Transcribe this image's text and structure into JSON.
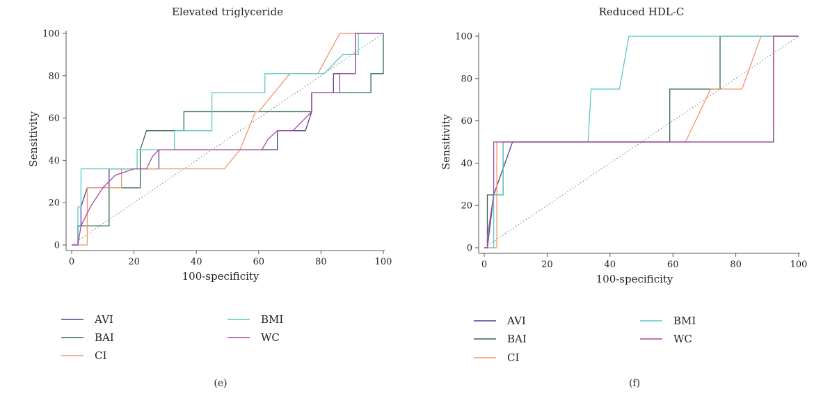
{
  "colors": {
    "AVI": "#4a3f8f",
    "BAI": "#2e6b4a",
    "CI": "#f0956a",
    "BMI": "#5cc8c2",
    "WC": "#a64aa0"
  },
  "chart_data": [
    {
      "type": "line",
      "title": "Elevated triglyceride",
      "panel_label": "(e)",
      "xlabel": "100-specificity",
      "ylabel": "Sensitivity",
      "xlim": [
        0,
        100
      ],
      "ylim": [
        0,
        100
      ],
      "xticks": [
        0,
        20,
        40,
        60,
        80,
        100
      ],
      "yticks": [
        0,
        20,
        40,
        60,
        80,
        100
      ],
      "reference_line": "diagonal",
      "legend": "bottom",
      "legend_order": [
        "AVI",
        "BAI",
        "CI",
        "BMI",
        "WC"
      ],
      "series": [
        {
          "name": "AVI",
          "x": [
            0,
            2,
            2,
            3,
            3,
            5,
            12,
            12,
            28,
            28,
            66,
            66,
            75,
            77,
            77,
            84,
            84,
            91,
            91,
            100
          ],
          "y": [
            0,
            0,
            9,
            9,
            18,
            27,
            27,
            36,
            36,
            45,
            45,
            54,
            54,
            63,
            72,
            72,
            81,
            81,
            100,
            100
          ]
        },
        {
          "name": "BAI",
          "x": [
            0,
            2,
            2,
            5,
            5,
            12,
            12,
            22,
            22,
            24,
            36,
            36,
            77,
            77,
            96,
            96,
            100,
            100
          ],
          "y": [
            0,
            0,
            9,
            9,
            9,
            9,
            27,
            27,
            45,
            54,
            54,
            63,
            63,
            72,
            72,
            81,
            81,
            100
          ]
        },
        {
          "name": "CI",
          "x": [
            0,
            5,
            5,
            16,
            16,
            49,
            54,
            59,
            60,
            70,
            79,
            86,
            92,
            100
          ],
          "y": [
            0,
            0,
            27,
            27,
            36,
            36,
            45,
            63,
            63,
            81,
            81,
            100,
            100,
            100
          ]
        },
        {
          "name": "BMI",
          "x": [
            0,
            2,
            2,
            3,
            3,
            21,
            21,
            33,
            33,
            45,
            45,
            62,
            62,
            81,
            87,
            92,
            92,
            100
          ],
          "y": [
            0,
            0,
            18,
            18,
            36,
            36,
            45,
            45,
            54,
            54,
            72,
            72,
            81,
            81,
            90,
            90,
            100,
            100
          ]
        },
        {
          "name": "WC",
          "x": [
            0,
            2,
            3,
            5,
            6,
            10,
            14,
            20,
            24,
            26,
            28,
            61,
            63,
            66,
            71,
            77,
            77,
            86,
            86,
            91,
            91,
            100
          ],
          "y": [
            0,
            0,
            9,
            15,
            18,
            27,
            33,
            36,
            36,
            42,
            45,
            45,
            50,
            54,
            54,
            63,
            72,
            72,
            81,
            81,
            100,
            100
          ]
        }
      ]
    },
    {
      "type": "line",
      "title": "Reduced HDL-C",
      "panel_label": "(f)",
      "xlabel": "100-specificity",
      "ylabel": "Sensitivity",
      "xlim": [
        0,
        100
      ],
      "ylim": [
        0,
        100
      ],
      "xticks": [
        0,
        20,
        40,
        60,
        80,
        100
      ],
      "yticks": [
        0,
        20,
        40,
        60,
        80,
        100
      ],
      "reference_line": "diagonal",
      "legend": "bottom",
      "legend_order": [
        "AVI",
        "BAI",
        "CI",
        "BMI",
        "WC"
      ],
      "series": [
        {
          "name": "AVI",
          "x": [
            0,
            1,
            2,
            3,
            9,
            92,
            92,
            100
          ],
          "y": [
            0,
            0,
            12,
            25,
            50,
            50,
            100,
            100
          ]
        },
        {
          "name": "BAI",
          "x": [
            0,
            1,
            1,
            6,
            6,
            59,
            59,
            75,
            75,
            100
          ],
          "y": [
            0,
            0,
            25,
            25,
            50,
            50,
            75,
            75,
            100,
            100
          ]
        },
        {
          "name": "CI",
          "x": [
            0,
            4,
            4,
            64,
            72,
            82,
            88,
            100
          ],
          "y": [
            0,
            0,
            50,
            50,
            75,
            75,
            100,
            100
          ]
        },
        {
          "name": "BMI",
          "x": [
            0,
            3,
            3,
            6,
            6,
            33,
            34,
            43,
            46,
            100
          ],
          "y": [
            0,
            0,
            25,
            25,
            50,
            50,
            75,
            75,
            100,
            100
          ]
        },
        {
          "name": "WC",
          "x": [
            0,
            1,
            1,
            3,
            3,
            92,
            92,
            100
          ],
          "y": [
            0,
            0,
            5,
            25,
            50,
            50,
            100,
            100
          ]
        }
      ]
    }
  ]
}
